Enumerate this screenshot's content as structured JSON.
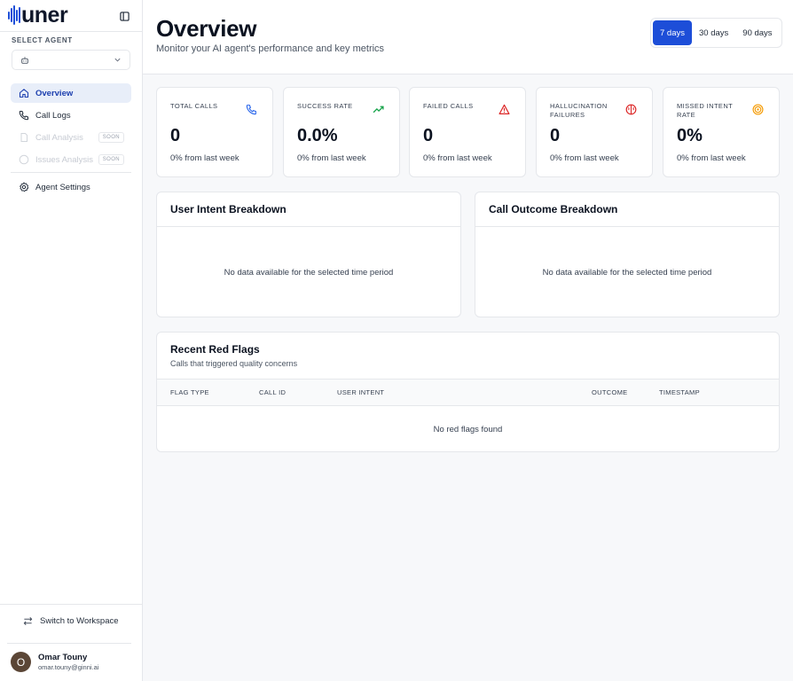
{
  "app": {
    "logo_text": "uner"
  },
  "sidebar": {
    "select_agent_label": "SELECT AGENT",
    "nav": [
      {
        "label": "Overview",
        "icon": "home-icon",
        "active": true,
        "disabled": false
      },
      {
        "label": "Call Logs",
        "icon": "phone-icon",
        "active": false,
        "disabled": false
      },
      {
        "label": "Call Analysis",
        "icon": "document-icon",
        "active": false,
        "disabled": true,
        "badge": "SOON"
      },
      {
        "label": "Issues Analysis",
        "icon": "alert-circle-icon",
        "active": false,
        "disabled": true,
        "badge": "SOON"
      },
      {
        "label": "Agent Settings",
        "icon": "gear-icon",
        "active": false,
        "disabled": false
      }
    ],
    "switch_workspace": "Switch to Workspace",
    "user": {
      "initial": "O",
      "name": "Omar Touny",
      "email": "omar.touny@ginni.ai"
    }
  },
  "header": {
    "title": "Overview",
    "subtitle": "Monitor your AI agent's performance and key metrics",
    "ranges": [
      "7 days",
      "30 days",
      "90 days"
    ],
    "active_range": "7 days"
  },
  "stats": [
    {
      "label": "TOTAL CALLS",
      "value": "0",
      "change": "0% from last week",
      "icon": "phone-icon",
      "color": "#2563eb"
    },
    {
      "label": "SUCCESS RATE",
      "value": "0.0%",
      "change": "0% from last week",
      "icon": "trending-up-icon",
      "color": "#16a34a"
    },
    {
      "label": "FAILED CALLS",
      "value": "0",
      "change": "0% from last week",
      "icon": "warning-triangle-icon",
      "color": "#dc2626"
    },
    {
      "label": "HALLUCINATION FAILURES",
      "value": "0",
      "change": "0% from last week",
      "icon": "brain-icon",
      "color": "#dc2626"
    },
    {
      "label": "MISSED INTENT RATE",
      "value": "0%",
      "change": "0% from last week",
      "icon": "target-icon",
      "color": "#f59e0b"
    }
  ],
  "breakdowns": {
    "user_intent": {
      "title": "User Intent Breakdown",
      "empty": "No data available for the selected time period"
    },
    "call_outcome": {
      "title": "Call Outcome Breakdown",
      "empty": "No data available for the selected time period"
    }
  },
  "red_flags": {
    "title": "Recent Red Flags",
    "subtitle": "Calls that triggered quality concerns",
    "columns": [
      "FLAG TYPE",
      "CALL ID",
      "USER INTENT",
      "OUTCOME",
      "TIMESTAMP"
    ],
    "empty": "No red flags found"
  }
}
